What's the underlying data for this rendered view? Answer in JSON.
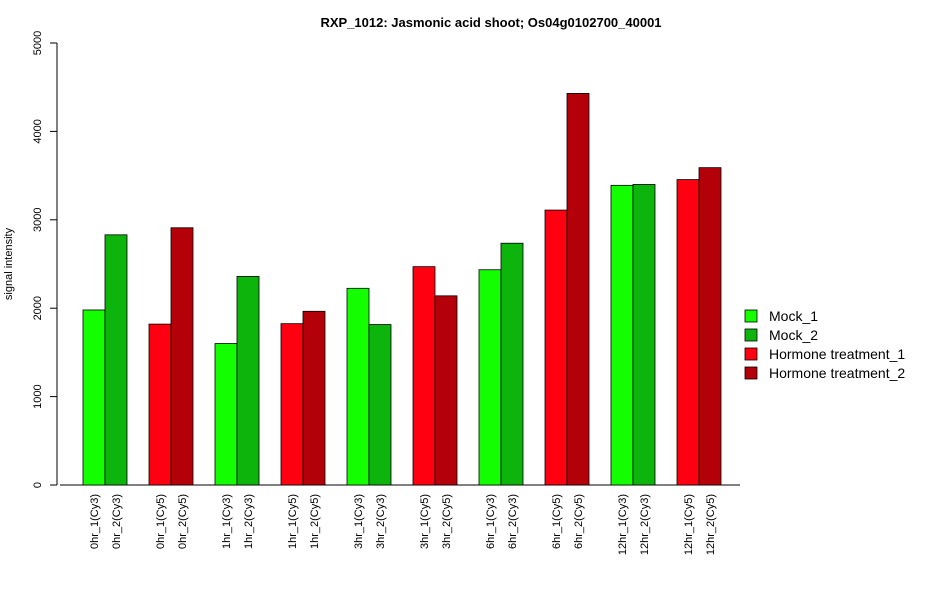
{
  "chart_data": {
    "type": "bar",
    "title": "RXP_1012: Jasmonic acid shoot; Os04g0102700_40001",
    "ylabel": "signal intensity",
    "xlabel": "",
    "ylim": [
      0,
      5000
    ],
    "yticks": [
      0,
      1000,
      2000,
      3000,
      4000,
      5000
    ],
    "grid": false,
    "legend_position": "right",
    "groups": [
      {
        "labels": [
          "0hr_1(Cy3)",
          "0hr_2(Cy3)"
        ],
        "values": [
          1980,
          2830
        ],
        "series": [
          "Mock_1",
          "Mock_2"
        ]
      },
      {
        "labels": [
          "0hr_1(Cy5)",
          "0hr_2(Cy5)"
        ],
        "values": [
          1820,
          2910
        ],
        "series": [
          "Hormone treatment_1",
          "Hormone treatment_2"
        ]
      },
      {
        "labels": [
          "1hr_1(Cy3)",
          "1hr_2(Cy3)"
        ],
        "values": [
          1600,
          2360
        ],
        "series": [
          "Mock_1",
          "Mock_2"
        ]
      },
      {
        "labels": [
          "1hr_1(Cy5)",
          "1hr_2(Cy5)"
        ],
        "values": [
          1825,
          1965
        ],
        "series": [
          "Hormone treatment_1",
          "Hormone treatment_2"
        ]
      },
      {
        "labels": [
          "3hr_1(Cy3)",
          "3hr_2(Cy3)"
        ],
        "values": [
          2225,
          1815
        ],
        "series": [
          "Mock_1",
          "Mock_2"
        ]
      },
      {
        "labels": [
          "3hr_1(Cy5)",
          "3hr_2(Cy5)"
        ],
        "values": [
          2470,
          2140
        ],
        "series": [
          "Hormone treatment_1",
          "Hormone treatment_2"
        ]
      },
      {
        "labels": [
          "6hr_1(Cy3)",
          "6hr_2(Cy3)"
        ],
        "values": [
          2435,
          2735
        ],
        "series": [
          "Mock_1",
          "Mock_2"
        ]
      },
      {
        "labels": [
          "6hr_1(Cy5)",
          "6hr_2(Cy5)"
        ],
        "values": [
          3110,
          4430
        ],
        "series": [
          "Hormone treatment_1",
          "Hormone treatment_2"
        ]
      },
      {
        "labels": [
          "12hr_1(Cy3)",
          "12hr_2(Cy3)"
        ],
        "values": [
          3390,
          3400
        ],
        "series": [
          "Mock_1",
          "Mock_2"
        ]
      },
      {
        "labels": [
          "12hr_1(Cy5)",
          "12hr_2(Cy5)"
        ],
        "values": [
          3455,
          3590
        ],
        "series": [
          "Hormone treatment_1",
          "Hormone treatment_2"
        ]
      }
    ],
    "legend": [
      {
        "name": "Mock_1",
        "color": "#13ff00"
      },
      {
        "name": "Mock_2",
        "color": "#0cb40c"
      },
      {
        "name": "Hormone treatment_1",
        "color": "#ff0010"
      },
      {
        "name": "Hormone treatment_2",
        "color": "#b40008"
      }
    ]
  }
}
